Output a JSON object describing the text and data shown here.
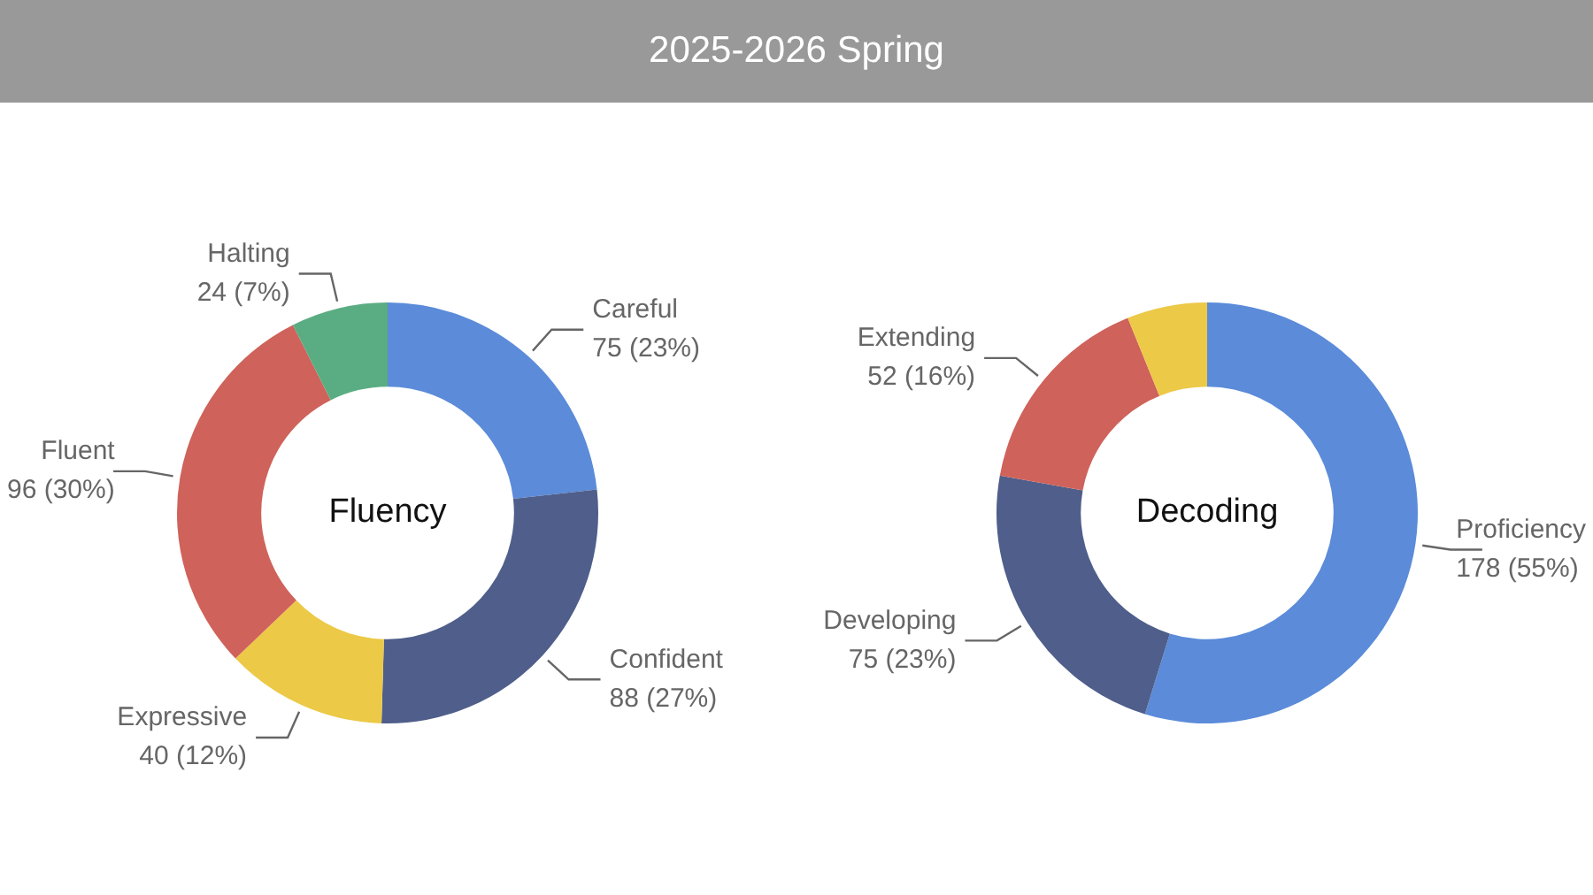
{
  "chart_data": [
    {
      "type": "donut",
      "title": "Fluency",
      "annotations": [
        "2025-2026 Spring"
      ],
      "categories": [
        "Careful",
        "Confident",
        "Expressive",
        "Fluent",
        "Halting"
      ],
      "values": [
        75,
        88,
        40,
        96,
        24
      ],
      "value_labels": [
        "75 (23%)",
        "88 (27%)",
        "40 (12%)",
        "96 (30%)",
        "24 (7%)"
      ],
      "colors": [
        "#5b8bd9",
        "#4f5e8a",
        "#ecc946",
        "#cf625a",
        "#5aad82"
      ],
      "legend": false
    },
    {
      "type": "donut",
      "title": "Decoding",
      "categories": [
        "Proficiency",
        "Developing",
        "Extending",
        null
      ],
      "values": [
        178,
        75,
        52,
        20
      ],
      "value_labels": [
        "178 (55%)",
        "75 (23%)",
        "52 (16%)",
        null
      ],
      "colors": [
        "#5b8bd9",
        "#4f5e8a",
        "#cf625a",
        "#ecc946"
      ],
      "legend": false
    }
  ]
}
